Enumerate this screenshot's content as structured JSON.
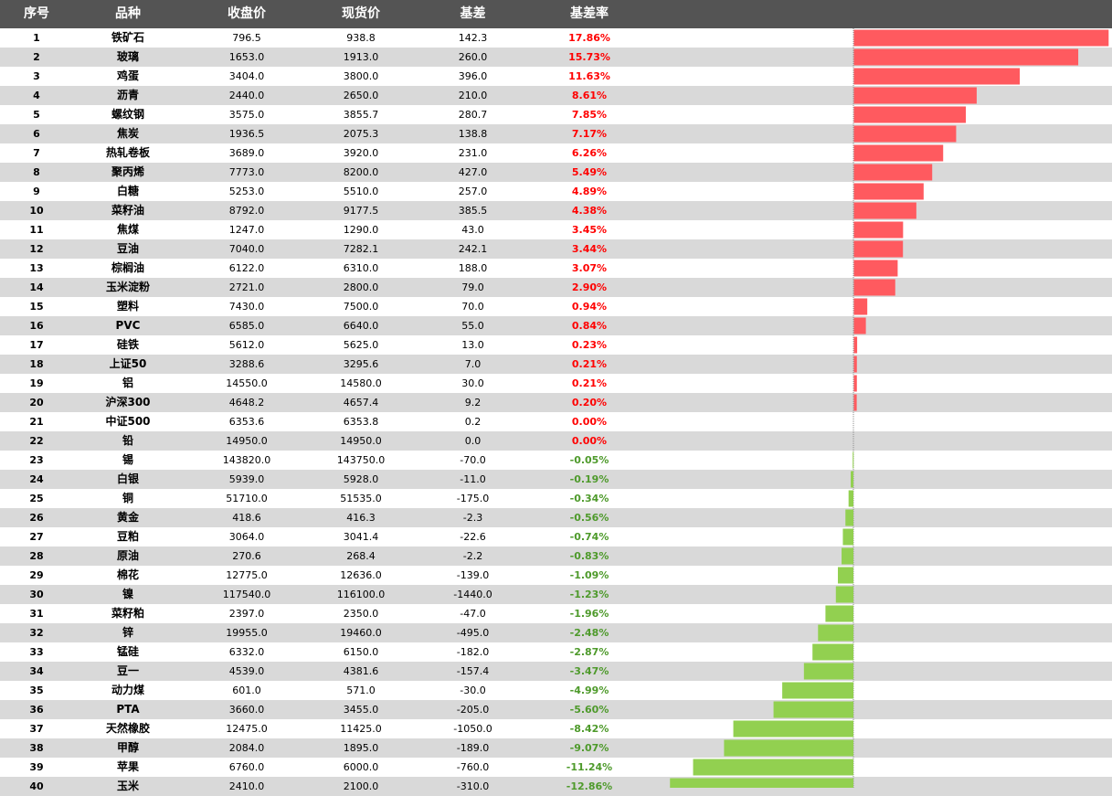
{
  "header": {
    "no": "序号",
    "name": "品种",
    "close": "收盘价",
    "spot": "现货价",
    "basis": "基差",
    "rate": "基差率"
  },
  "colors": {
    "positive": "#ff5a5f",
    "negative": "#92d050",
    "header_bg": "#545454",
    "alt_row": "#d9d9d9"
  },
  "rows": [
    {
      "no": "1",
      "name": "铁矿石",
      "close": "796.5",
      "spot": "938.8",
      "basis": "142.3",
      "rate": "17.86%"
    },
    {
      "no": "2",
      "name": "玻璃",
      "close": "1653.0",
      "spot": "1913.0",
      "basis": "260.0",
      "rate": "15.73%"
    },
    {
      "no": "3",
      "name": "鸡蛋",
      "close": "3404.0",
      "spot": "3800.0",
      "basis": "396.0",
      "rate": "11.63%"
    },
    {
      "no": "4",
      "name": "沥青",
      "close": "2440.0",
      "spot": "2650.0",
      "basis": "210.0",
      "rate": "8.61%"
    },
    {
      "no": "5",
      "name": "螺纹钢",
      "close": "3575.0",
      "spot": "3855.7",
      "basis": "280.7",
      "rate": "7.85%"
    },
    {
      "no": "6",
      "name": "焦炭",
      "close": "1936.5",
      "spot": "2075.3",
      "basis": "138.8",
      "rate": "7.17%"
    },
    {
      "no": "7",
      "name": "热轧卷板",
      "close": "3689.0",
      "spot": "3920.0",
      "basis": "231.0",
      "rate": "6.26%"
    },
    {
      "no": "8",
      "name": "聚丙烯",
      "close": "7773.0",
      "spot": "8200.0",
      "basis": "427.0",
      "rate": "5.49%"
    },
    {
      "no": "9",
      "name": "白糖",
      "close": "5253.0",
      "spot": "5510.0",
      "basis": "257.0",
      "rate": "4.89%"
    },
    {
      "no": "10",
      "name": "菜籽油",
      "close": "8792.0",
      "spot": "9177.5",
      "basis": "385.5",
      "rate": "4.38%"
    },
    {
      "no": "11",
      "name": "焦煤",
      "close": "1247.0",
      "spot": "1290.0",
      "basis": "43.0",
      "rate": "3.45%"
    },
    {
      "no": "12",
      "name": "豆油",
      "close": "7040.0",
      "spot": "7282.1",
      "basis": "242.1",
      "rate": "3.44%"
    },
    {
      "no": "13",
      "name": "棕榈油",
      "close": "6122.0",
      "spot": "6310.0",
      "basis": "188.0",
      "rate": "3.07%"
    },
    {
      "no": "14",
      "name": "玉米淀粉",
      "close": "2721.0",
      "spot": "2800.0",
      "basis": "79.0",
      "rate": "2.90%"
    },
    {
      "no": "15",
      "name": "塑料",
      "close": "7430.0",
      "spot": "7500.0",
      "basis": "70.0",
      "rate": "0.94%"
    },
    {
      "no": "16",
      "name": "PVC",
      "close": "6585.0",
      "spot": "6640.0",
      "basis": "55.0",
      "rate": "0.84%"
    },
    {
      "no": "17",
      "name": "硅铁",
      "close": "5612.0",
      "spot": "5625.0",
      "basis": "13.0",
      "rate": "0.23%"
    },
    {
      "no": "18",
      "name": "上证50",
      "close": "3288.6",
      "spot": "3295.6",
      "basis": "7.0",
      "rate": "0.21%"
    },
    {
      "no": "19",
      "name": "铝",
      "close": "14550.0",
      "spot": "14580.0",
      "basis": "30.0",
      "rate": "0.21%"
    },
    {
      "no": "20",
      "name": "沪深300",
      "close": "4648.2",
      "spot": "4657.4",
      "basis": "9.2",
      "rate": "0.20%"
    },
    {
      "no": "21",
      "name": "中证500",
      "close": "6353.6",
      "spot": "6353.8",
      "basis": "0.2",
      "rate": "0.00%"
    },
    {
      "no": "22",
      "name": "铅",
      "close": "14950.0",
      "spot": "14950.0",
      "basis": "0.0",
      "rate": "0.00%"
    },
    {
      "no": "23",
      "name": "锡",
      "close": "143820.0",
      "spot": "143750.0",
      "basis": "-70.0",
      "rate": "-0.05%"
    },
    {
      "no": "24",
      "name": "白银",
      "close": "5939.0",
      "spot": "5928.0",
      "basis": "-11.0",
      "rate": "-0.19%"
    },
    {
      "no": "25",
      "name": "铜",
      "close": "51710.0",
      "spot": "51535.0",
      "basis": "-175.0",
      "rate": "-0.34%"
    },
    {
      "no": "26",
      "name": "黄金",
      "close": "418.6",
      "spot": "416.3",
      "basis": "-2.3",
      "rate": "-0.56%"
    },
    {
      "no": "27",
      "name": "豆粕",
      "close": "3064.0",
      "spot": "3041.4",
      "basis": "-22.6",
      "rate": "-0.74%"
    },
    {
      "no": "28",
      "name": "原油",
      "close": "270.6",
      "spot": "268.4",
      "basis": "-2.2",
      "rate": "-0.83%"
    },
    {
      "no": "29",
      "name": "棉花",
      "close": "12775.0",
      "spot": "12636.0",
      "basis": "-139.0",
      "rate": "-1.09%"
    },
    {
      "no": "30",
      "name": "镍",
      "close": "117540.0",
      "spot": "116100.0",
      "basis": "-1440.0",
      "rate": "-1.23%"
    },
    {
      "no": "31",
      "name": "菜籽粕",
      "close": "2397.0",
      "spot": "2350.0",
      "basis": "-47.0",
      "rate": "-1.96%"
    },
    {
      "no": "32",
      "name": "锌",
      "close": "19955.0",
      "spot": "19460.0",
      "basis": "-495.0",
      "rate": "-2.48%"
    },
    {
      "no": "33",
      "name": "锰硅",
      "close": "6332.0",
      "spot": "6150.0",
      "basis": "-182.0",
      "rate": "-2.87%"
    },
    {
      "no": "34",
      "name": "豆一",
      "close": "4539.0",
      "spot": "4381.6",
      "basis": "-157.4",
      "rate": "-3.47%"
    },
    {
      "no": "35",
      "name": "动力煤",
      "close": "601.0",
      "spot": "571.0",
      "basis": "-30.0",
      "rate": "-4.99%"
    },
    {
      "no": "36",
      "name": "PTA",
      "close": "3660.0",
      "spot": "3455.0",
      "basis": "-205.0",
      "rate": "-5.60%"
    },
    {
      "no": "37",
      "name": "天然橡胶",
      "close": "12475.0",
      "spot": "11425.0",
      "basis": "-1050.0",
      "rate": "-8.42%"
    },
    {
      "no": "38",
      "name": "甲醇",
      "close": "2084.0",
      "spot": "1895.0",
      "basis": "-189.0",
      "rate": "-9.07%"
    },
    {
      "no": "39",
      "name": "苹果",
      "close": "6760.0",
      "spot": "6000.0",
      "basis": "-760.0",
      "rate": "-11.24%"
    },
    {
      "no": "40",
      "name": "玉米",
      "close": "2410.0",
      "spot": "2100.0",
      "basis": "-310.0",
      "rate": "-12.86%"
    }
  ],
  "chart_data": {
    "type": "bar",
    "orientation": "horizontal",
    "categories": [
      "铁矿石",
      "玻璃",
      "鸡蛋",
      "沥青",
      "螺纹钢",
      "焦炭",
      "热轧卷板",
      "聚丙烯",
      "白糖",
      "菜籽油",
      "焦煤",
      "豆油",
      "棕榈油",
      "玉米淀粉",
      "塑料",
      "PVC",
      "硅铁",
      "上证50",
      "铝",
      "沪深300",
      "中证500",
      "铅",
      "锡",
      "白银",
      "铜",
      "黄金",
      "豆粕",
      "原油",
      "棉花",
      "镍",
      "菜籽粕",
      "锌",
      "锰硅",
      "豆一",
      "动力煤",
      "PTA",
      "天然橡胶",
      "甲醇",
      "苹果",
      "玉米"
    ],
    "values": [
      17.86,
      15.73,
      11.63,
      8.61,
      7.85,
      7.17,
      6.26,
      5.49,
      4.89,
      4.38,
      3.45,
      3.44,
      3.07,
      2.9,
      0.94,
      0.84,
      0.23,
      0.21,
      0.21,
      0.2,
      0.0,
      0.0,
      -0.05,
      -0.19,
      -0.34,
      -0.56,
      -0.74,
      -0.83,
      -1.09,
      -1.23,
      -1.96,
      -2.48,
      -2.87,
      -3.47,
      -4.99,
      -5.6,
      -8.42,
      -9.07,
      -11.24,
      -12.86
    ],
    "unit": "%",
    "xlim": [
      -13,
      18
    ],
    "grid": false,
    "title": "",
    "xlabel": "",
    "ylabel": ""
  }
}
